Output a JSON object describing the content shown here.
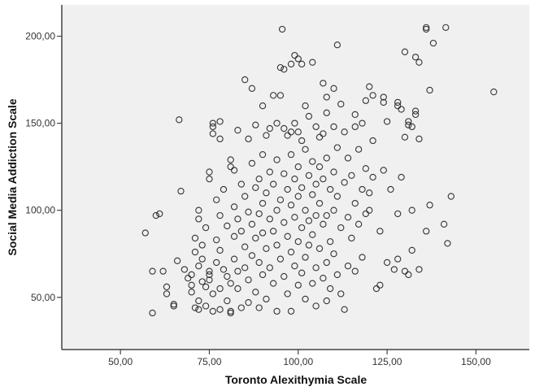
{
  "chart_data": {
    "type": "scatter",
    "title": "",
    "xlabel": "Toronto Alexithymia Scale",
    "ylabel": "Social Media Addiction Scale",
    "xlim": [
      33.5,
      165
    ],
    "ylim": [
      20,
      218
    ],
    "xticks": [
      {
        "v": 50,
        "label": "50,00"
      },
      {
        "v": 75,
        "label": "75,00"
      },
      {
        "v": 100,
        "label": "100,00"
      },
      {
        "v": 125,
        "label": "125,00"
      },
      {
        "v": 150,
        "label": "150,00"
      }
    ],
    "yticks": [
      {
        "v": 50,
        "label": "50,00"
      },
      {
        "v": 100,
        "label": "100,00"
      },
      {
        "v": 150,
        "label": "150,00"
      },
      {
        "v": 200,
        "label": "200,00"
      }
    ],
    "grid": false,
    "background": "#f0f0f0",
    "marker": "open-circle",
    "marker_color": "#333333",
    "points": [
      [
        57,
        87
      ],
      [
        59,
        41
      ],
      [
        59,
        65
      ],
      [
        62,
        65
      ],
      [
        60,
        97
      ],
      [
        61,
        98
      ],
      [
        63,
        56
      ],
      [
        63,
        52
      ],
      [
        65,
        46
      ],
      [
        65,
        45
      ],
      [
        66,
        71
      ],
      [
        66.5,
        152
      ],
      [
        67,
        111
      ],
      [
        68,
        66
      ],
      [
        69,
        61
      ],
      [
        70,
        57
      ],
      [
        70,
        53
      ],
      [
        70,
        63
      ],
      [
        71,
        44
      ],
      [
        71,
        76
      ],
      [
        71,
        84
      ],
      [
        72,
        48
      ],
      [
        72,
        43
      ],
      [
        72,
        68
      ],
      [
        72,
        95
      ],
      [
        72,
        100
      ],
      [
        73,
        59
      ],
      [
        73,
        72
      ],
      [
        73,
        80
      ],
      [
        74,
        90
      ],
      [
        74,
        56
      ],
      [
        74,
        45
      ],
      [
        75,
        65
      ],
      [
        75,
        63
      ],
      [
        75,
        60
      ],
      [
        75,
        118
      ],
      [
        75,
        122
      ],
      [
        76,
        150
      ],
      [
        76,
        148
      ],
      [
        76,
        144
      ],
      [
        76,
        52
      ],
      [
        76,
        42
      ],
      [
        77,
        106
      ],
      [
        77,
        83
      ],
      [
        77,
        70
      ],
      [
        78,
        151
      ],
      [
        78,
        141
      ],
      [
        78,
        97
      ],
      [
        78,
        77
      ],
      [
        78,
        55
      ],
      [
        78,
        43
      ],
      [
        79,
        112
      ],
      [
        79,
        66
      ],
      [
        80,
        91
      ],
      [
        80,
        62
      ],
      [
        80,
        48
      ],
      [
        81,
        42
      ],
      [
        81,
        41
      ],
      [
        81,
        129
      ],
      [
        81,
        125
      ],
      [
        81,
        58
      ],
      [
        82,
        123
      ],
      [
        82,
        102
      ],
      [
        82,
        85
      ],
      [
        82,
        72
      ],
      [
        83,
        146
      ],
      [
        83,
        95
      ],
      [
        83,
        65
      ],
      [
        83,
        55
      ],
      [
        84,
        115
      ],
      [
        84,
        88
      ],
      [
        84,
        44
      ],
      [
        85,
        175
      ],
      [
        85,
        108
      ],
      [
        85,
        79
      ],
      [
        85,
        67
      ],
      [
        86,
        141
      ],
      [
        86,
        99
      ],
      [
        86,
        60
      ],
      [
        86,
        47
      ],
      [
        87,
        170
      ],
      [
        87,
        127
      ],
      [
        87,
        92
      ],
      [
        87,
        74
      ],
      [
        88,
        149
      ],
      [
        88,
        113
      ],
      [
        88,
        84
      ],
      [
        88,
        53
      ],
      [
        89,
        118
      ],
      [
        89,
        98
      ],
      [
        89,
        70
      ],
      [
        89,
        44
      ],
      [
        90,
        160
      ],
      [
        90,
        132
      ],
      [
        90,
        104
      ],
      [
        90,
        87
      ],
      [
        90,
        63
      ],
      [
        91,
        143
      ],
      [
        91,
        110
      ],
      [
        91,
        78
      ],
      [
        91,
        49
      ],
      [
        92,
        147
      ],
      [
        92,
        122
      ],
      [
        92,
        95
      ],
      [
        92,
        67
      ],
      [
        93,
        166
      ],
      [
        93,
        115
      ],
      [
        93,
        88
      ],
      [
        93,
        58
      ],
      [
        94,
        150
      ],
      [
        94,
        129
      ],
      [
        94,
        100
      ],
      [
        94,
        80
      ],
      [
        94,
        42
      ],
      [
        95,
        166
      ],
      [
        95,
        182
      ],
      [
        95,
        106
      ],
      [
        95,
        72
      ],
      [
        95.5,
        204
      ],
      [
        96,
        181
      ],
      [
        96,
        147
      ],
      [
        96,
        121
      ],
      [
        96,
        93
      ],
      [
        96,
        62
      ],
      [
        97,
        143
      ],
      [
        97,
        112
      ],
      [
        97,
        85
      ],
      [
        97,
        52
      ],
      [
        98,
        184
      ],
      [
        98,
        145
      ],
      [
        98,
        132
      ],
      [
        98,
        103
      ],
      [
        98,
        76
      ],
      [
        98,
        42
      ],
      [
        99,
        189
      ],
      [
        99,
        150
      ],
      [
        99,
        118
      ],
      [
        99,
        96
      ],
      [
        99,
        68
      ],
      [
        100,
        187
      ],
      [
        100,
        145
      ],
      [
        100,
        125
      ],
      [
        100,
        108
      ],
      [
        100,
        82
      ],
      [
        100,
        57
      ],
      [
        101,
        184
      ],
      [
        101,
        140
      ],
      [
        101,
        113
      ],
      [
        101,
        90
      ],
      [
        101,
        64
      ],
      [
        102,
        160
      ],
      [
        102,
        135
      ],
      [
        102,
        100
      ],
      [
        102,
        73
      ],
      [
        102,
        49
      ],
      [
        103,
        154
      ],
      [
        103,
        120
      ],
      [
        103,
        94
      ],
      [
        103,
        80
      ],
      [
        104,
        185
      ],
      [
        104,
        128
      ],
      [
        104,
        109
      ],
      [
        104,
        86
      ],
      [
        104,
        58
      ],
      [
        105,
        148
      ],
      [
        105,
        115
      ],
      [
        105,
        97
      ],
      [
        105,
        67
      ],
      [
        105,
        45
      ],
      [
        106,
        142
      ],
      [
        106,
        125
      ],
      [
        106,
        104
      ],
      [
        106,
        78
      ],
      [
        107,
        173
      ],
      [
        107,
        144
      ],
      [
        107,
        118
      ],
      [
        107,
        92
      ],
      [
        107,
        61
      ],
      [
        108,
        165
      ],
      [
        108,
        156
      ],
      [
        108,
        130
      ],
      [
        108,
        97
      ],
      [
        108,
        70
      ],
      [
        108,
        48
      ],
      [
        109,
        112
      ],
      [
        109,
        82
      ],
      [
        109,
        55
      ],
      [
        110,
        170
      ],
      [
        110,
        148
      ],
      [
        110,
        122
      ],
      [
        110,
        100
      ],
      [
        110,
        75
      ],
      [
        111,
        136
      ],
      [
        111,
        108
      ],
      [
        111,
        63
      ],
      [
        111,
        195
      ],
      [
        112,
        161
      ],
      [
        112,
        90
      ],
      [
        112,
        52
      ],
      [
        113,
        145
      ],
      [
        113,
        116
      ],
      [
        113,
        43
      ],
      [
        114,
        130
      ],
      [
        114,
        96
      ],
      [
        114,
        68
      ],
      [
        115,
        120
      ],
      [
        115,
        84
      ],
      [
        116,
        155
      ],
      [
        116,
        148
      ],
      [
        116,
        104
      ],
      [
        116,
        65
      ],
      [
        117,
        135
      ],
      [
        117,
        92
      ],
      [
        118,
        150
      ],
      [
        118,
        112
      ],
      [
        118,
        73
      ],
      [
        119,
        163
      ],
      [
        119,
        124
      ],
      [
        119,
        98
      ],
      [
        120,
        171
      ],
      [
        120,
        110
      ],
      [
        120,
        100
      ],
      [
        121,
        166
      ],
      [
        121,
        140
      ],
      [
        121,
        119
      ],
      [
        122,
        55
      ],
      [
        123,
        57
      ],
      [
        123,
        88
      ],
      [
        124,
        165
      ],
      [
        124,
        162
      ],
      [
        124,
        123
      ],
      [
        125,
        151
      ],
      [
        125,
        70
      ],
      [
        126,
        112
      ],
      [
        127,
        66
      ],
      [
        128,
        162
      ],
      [
        128,
        160
      ],
      [
        128,
        98
      ],
      [
        128,
        72
      ],
      [
        129,
        158
      ],
      [
        129,
        119
      ],
      [
        130,
        191
      ],
      [
        130,
        142
      ],
      [
        130,
        65
      ],
      [
        131,
        151
      ],
      [
        131,
        149
      ],
      [
        131,
        63
      ],
      [
        132,
        148
      ],
      [
        132,
        100
      ],
      [
        132,
        77
      ],
      [
        133,
        188
      ],
      [
        133,
        157
      ],
      [
        133,
        155
      ],
      [
        134,
        185
      ],
      [
        134,
        141
      ],
      [
        134,
        66
      ],
      [
        136,
        205
      ],
      [
        136,
        204
      ],
      [
        136,
        88
      ],
      [
        137,
        169
      ],
      [
        137,
        103
      ],
      [
        138,
        196
      ],
      [
        141,
        92
      ],
      [
        141.5,
        205
      ],
      [
        142,
        81
      ],
      [
        143,
        108
      ],
      [
        155,
        168
      ]
    ]
  }
}
